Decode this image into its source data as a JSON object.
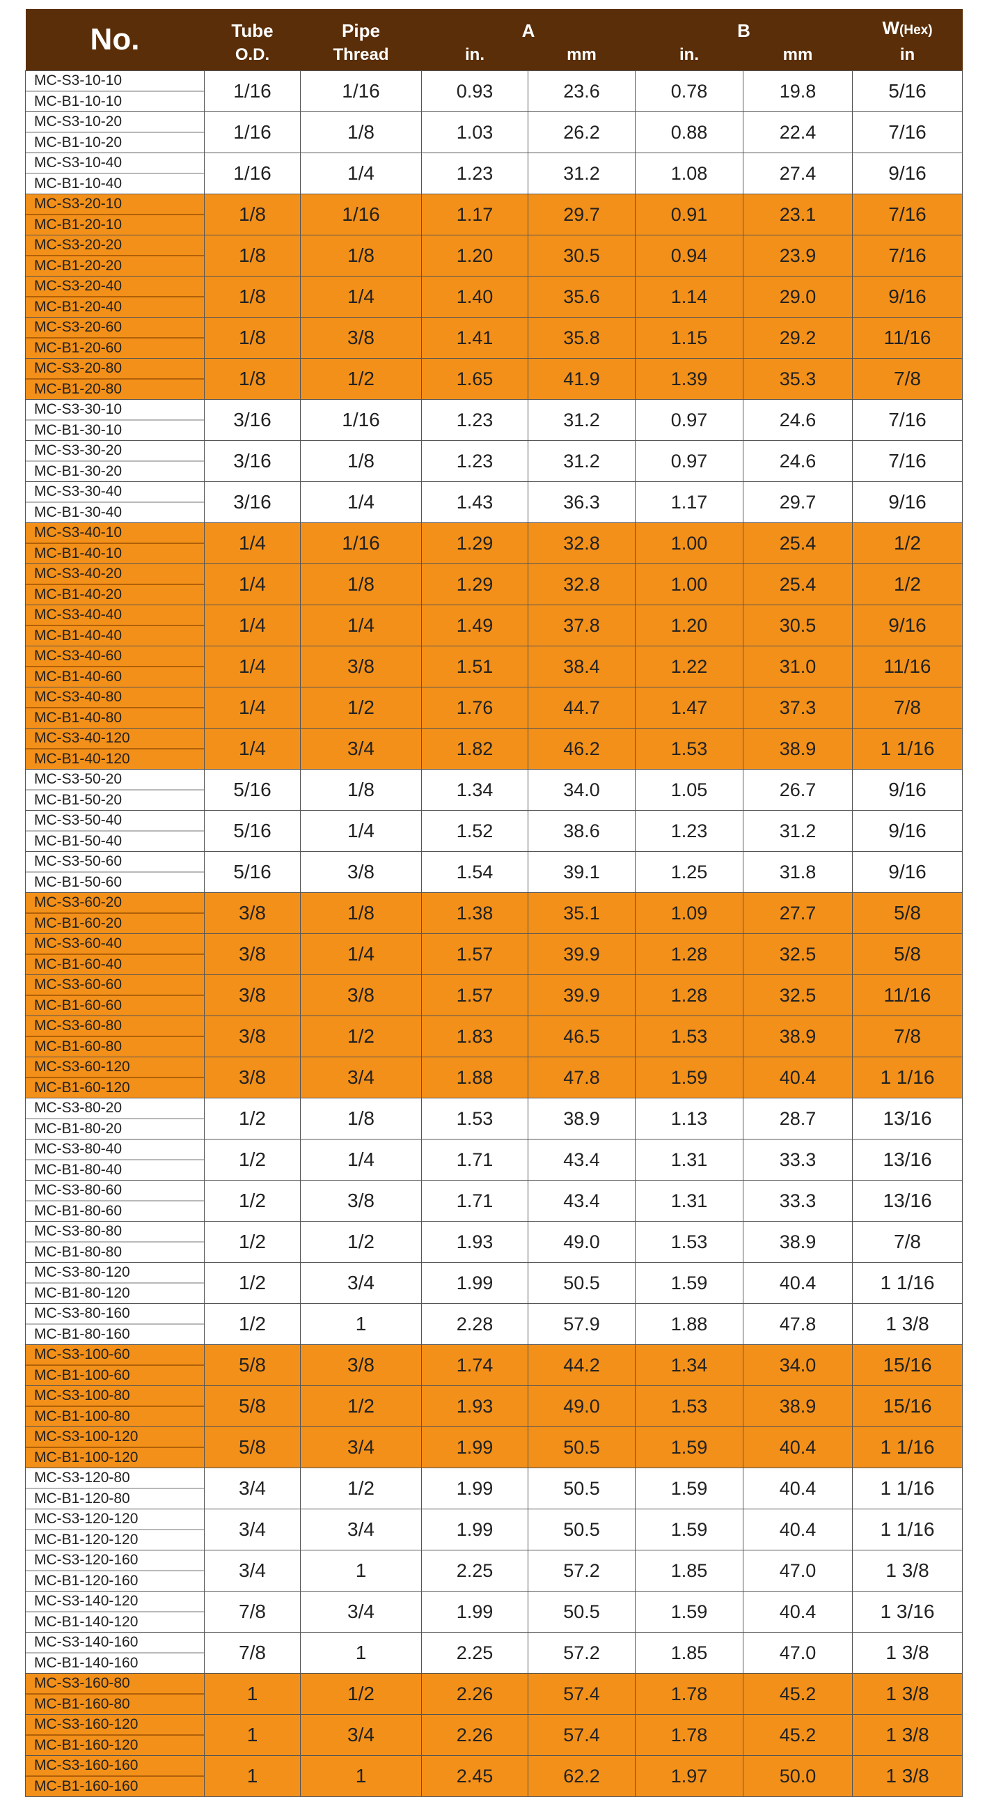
{
  "header": {
    "no": "No.",
    "tube_1": "Tube",
    "tube_2": "O.D.",
    "pipe_1": "Pipe",
    "pipe_2": "Thread",
    "a": "A",
    "b": "B",
    "w": "W",
    "w_sub": "(Hex)",
    "a_in": "in.",
    "a_mm": "mm",
    "b_in": "in.",
    "b_mm": "mm",
    "w_in": "in"
  },
  "colors": {
    "header": "#5a2e08",
    "highlight": "#f39019",
    "plain": "#ffffff"
  },
  "rows": [
    [
      "MC-S3-10-10",
      "MC-B1-10-10",
      "1/16",
      "1/16",
      "0.93",
      "23.6",
      "0.78",
      "19.8",
      "5/16",
      false
    ],
    [
      "MC-S3-10-20",
      "MC-B1-10-20",
      "1/16",
      "1/8",
      "1.03",
      "26.2",
      "0.88",
      "22.4",
      "7/16",
      false
    ],
    [
      "MC-S3-10-40",
      "MC-B1-10-40",
      "1/16",
      "1/4",
      "1.23",
      "31.2",
      "1.08",
      "27.4",
      "9/16",
      false
    ],
    [
      "MC-S3-20-10",
      "MC-B1-20-10",
      "1/8",
      "1/16",
      "1.17",
      "29.7",
      "0.91",
      "23.1",
      "7/16",
      true
    ],
    [
      "MC-S3-20-20",
      "MC-B1-20-20",
      "1/8",
      "1/8",
      "1.20",
      "30.5",
      "0.94",
      "23.9",
      "7/16",
      true
    ],
    [
      "MC-S3-20-40",
      "MC-B1-20-40",
      "1/8",
      "1/4",
      "1.40",
      "35.6",
      "1.14",
      "29.0",
      "9/16",
      true
    ],
    [
      "MC-S3-20-60",
      "MC-B1-20-60",
      "1/8",
      "3/8",
      "1.41",
      "35.8",
      "1.15",
      "29.2",
      "11/16",
      true
    ],
    [
      "MC-S3-20-80",
      "MC-B1-20-80",
      "1/8",
      "1/2",
      "1.65",
      "41.9",
      "1.39",
      "35.3",
      "7/8",
      true
    ],
    [
      "MC-S3-30-10",
      "MC-B1-30-10",
      "3/16",
      "1/16",
      "1.23",
      "31.2",
      "0.97",
      "24.6",
      "7/16",
      false
    ],
    [
      "MC-S3-30-20",
      "MC-B1-30-20",
      "3/16",
      "1/8",
      "1.23",
      "31.2",
      "0.97",
      "24.6",
      "7/16",
      false
    ],
    [
      "MC-S3-30-40",
      "MC-B1-30-40",
      "3/16",
      "1/4",
      "1.43",
      "36.3",
      "1.17",
      "29.7",
      "9/16",
      false
    ],
    [
      "MC-S3-40-10",
      "MC-B1-40-10",
      "1/4",
      "1/16",
      "1.29",
      "32.8",
      "1.00",
      "25.4",
      "1/2",
      true
    ],
    [
      "MC-S3-40-20",
      "MC-B1-40-20",
      "1/4",
      "1/8",
      "1.29",
      "32.8",
      "1.00",
      "25.4",
      "1/2",
      true
    ],
    [
      "MC-S3-40-40",
      "MC-B1-40-40",
      "1/4",
      "1/4",
      "1.49",
      "37.8",
      "1.20",
      "30.5",
      "9/16",
      true
    ],
    [
      "MC-S3-40-60",
      "MC-B1-40-60",
      "1/4",
      "3/8",
      "1.51",
      "38.4",
      "1.22",
      "31.0",
      "11/16",
      true
    ],
    [
      "MC-S3-40-80",
      "MC-B1-40-80",
      "1/4",
      "1/2",
      "1.76",
      "44.7",
      "1.47",
      "37.3",
      "7/8",
      true
    ],
    [
      "MC-S3-40-120",
      "MC-B1-40-120",
      "1/4",
      "3/4",
      "1.82",
      "46.2",
      "1.53",
      "38.9",
      "1 1/16",
      true
    ],
    [
      "MC-S3-50-20",
      "MC-B1-50-20",
      "5/16",
      "1/8",
      "1.34",
      "34.0",
      "1.05",
      "26.7",
      "9/16",
      false
    ],
    [
      "MC-S3-50-40",
      "MC-B1-50-40",
      "5/16",
      "1/4",
      "1.52",
      "38.6",
      "1.23",
      "31.2",
      "9/16",
      false
    ],
    [
      "MC-S3-50-60",
      "MC-B1-50-60",
      "5/16",
      "3/8",
      "1.54",
      "39.1",
      "1.25",
      "31.8",
      "9/16",
      false
    ],
    [
      "MC-S3-60-20",
      "MC-B1-60-20",
      "3/8",
      "1/8",
      "1.38",
      "35.1",
      "1.09",
      "27.7",
      "5/8",
      true
    ],
    [
      "MC-S3-60-40",
      "MC-B1-60-40",
      "3/8",
      "1/4",
      "1.57",
      "39.9",
      "1.28",
      "32.5",
      "5/8",
      true
    ],
    [
      "MC-S3-60-60",
      "MC-B1-60-60",
      "3/8",
      "3/8",
      "1.57",
      "39.9",
      "1.28",
      "32.5",
      "11/16",
      true
    ],
    [
      "MC-S3-60-80",
      "MC-B1-60-80",
      "3/8",
      "1/2",
      "1.83",
      "46.5",
      "1.53",
      "38.9",
      "7/8",
      true
    ],
    [
      "MC-S3-60-120",
      "MC-B1-60-120",
      "3/8",
      "3/4",
      "1.88",
      "47.8",
      "1.59",
      "40.4",
      "1 1/16",
      true
    ],
    [
      "MC-S3-80-20",
      "MC-B1-80-20",
      "1/2",
      "1/8",
      "1.53",
      "38.9",
      "1.13",
      "28.7",
      "13/16",
      false
    ],
    [
      "MC-S3-80-40",
      "MC-B1-80-40",
      "1/2",
      "1/4",
      "1.71",
      "43.4",
      "1.31",
      "33.3",
      "13/16",
      false
    ],
    [
      "MC-S3-80-60",
      "MC-B1-80-60",
      "1/2",
      "3/8",
      "1.71",
      "43.4",
      "1.31",
      "33.3",
      "13/16",
      false
    ],
    [
      "MC-S3-80-80",
      "MC-B1-80-80",
      "1/2",
      "1/2",
      "1.93",
      "49.0",
      "1.53",
      "38.9",
      "7/8",
      false
    ],
    [
      "MC-S3-80-120",
      "MC-B1-80-120",
      "1/2",
      "3/4",
      "1.99",
      "50.5",
      "1.59",
      "40.4",
      "1 1/16",
      false
    ],
    [
      "MC-S3-80-160",
      "MC-B1-80-160",
      "1/2",
      "1",
      "2.28",
      "57.9",
      "1.88",
      "47.8",
      "1 3/8",
      false
    ],
    [
      "MC-S3-100-60",
      "MC-B1-100-60",
      "5/8",
      "3/8",
      "1.74",
      "44.2",
      "1.34",
      "34.0",
      "15/16",
      true
    ],
    [
      "MC-S3-100-80",
      "MC-B1-100-80",
      "5/8",
      "1/2",
      "1.93",
      "49.0",
      "1.53",
      "38.9",
      "15/16",
      true
    ],
    [
      "MC-S3-100-120",
      "MC-B1-100-120",
      "5/8",
      "3/4",
      "1.99",
      "50.5",
      "1.59",
      "40.4",
      "1 1/16",
      true
    ],
    [
      "MC-S3-120-80",
      "MC-B1-120-80",
      "3/4",
      "1/2",
      "1.99",
      "50.5",
      "1.59",
      "40.4",
      "1 1/16",
      false
    ],
    [
      "MC-S3-120-120",
      "MC-B1-120-120",
      "3/4",
      "3/4",
      "1.99",
      "50.5",
      "1.59",
      "40.4",
      "1 1/16",
      false
    ],
    [
      "MC-S3-120-160",
      "MC-B1-120-160",
      "3/4",
      "1",
      "2.25",
      "57.2",
      "1.85",
      "47.0",
      "1 3/8",
      false
    ],
    [
      "MC-S3-140-120",
      "MC-B1-140-120",
      "7/8",
      "3/4",
      "1.99",
      "50.5",
      "1.59",
      "40.4",
      "1 3/16",
      false
    ],
    [
      "MC-S3-140-160",
      "MC-B1-140-160",
      "7/8",
      "1",
      "2.25",
      "57.2",
      "1.85",
      "47.0",
      "1 3/8",
      false
    ],
    [
      "MC-S3-160-80",
      "MC-B1-160-80",
      "1",
      "1/2",
      "2.26",
      "57.4",
      "1.78",
      "45.2",
      "1 3/8",
      true
    ],
    [
      "MC-S3-160-120",
      "MC-B1-160-120",
      "1",
      "3/4",
      "2.26",
      "57.4",
      "1.78",
      "45.2",
      "1 3/8",
      true
    ],
    [
      "MC-S3-160-160",
      "MC-B1-160-160",
      "1",
      "1",
      "2.45",
      "62.2",
      "1.97",
      "50.0",
      "1 3/8",
      true
    ]
  ]
}
